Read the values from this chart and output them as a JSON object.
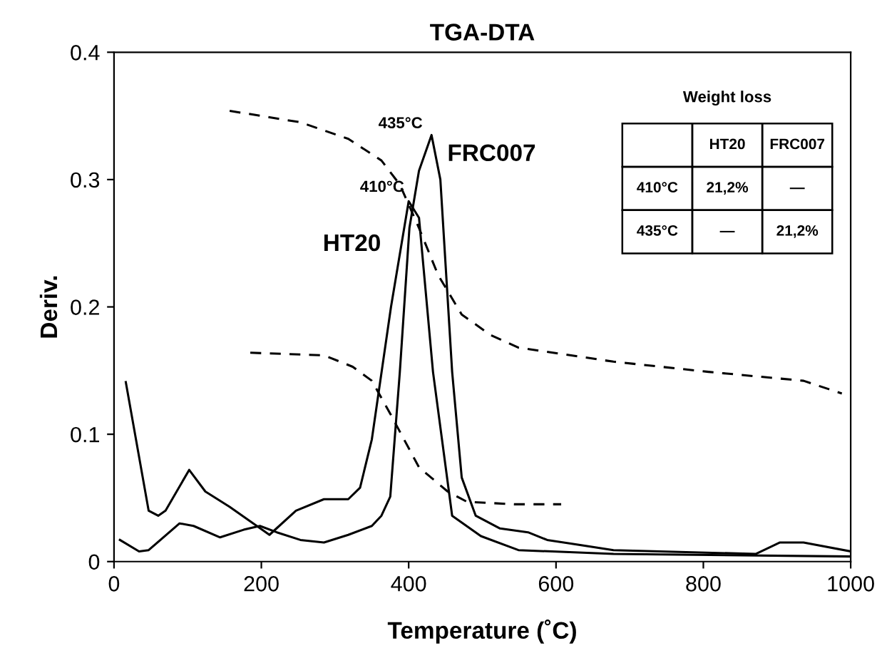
{
  "chart_data": {
    "type": "line",
    "title": "TGA-DTA",
    "xlabel": "Temperature (˚C)",
    "ylabel": "Deriv.",
    "xlim": [
      0,
      1000
    ],
    "ylim": [
      0,
      0.4
    ],
    "xticks": [
      0,
      200,
      400,
      600,
      800,
      1000
    ],
    "yticks": [
      0,
      0.1,
      0.2,
      0.3,
      0.4
    ],
    "grid": false,
    "legend": false,
    "marker": "none",
    "series": [
      {
        "name": "HT20",
        "color": "#000000",
        "line_style": "solid",
        "x": [
          16,
          47,
          60,
          70,
          102,
          124,
          157,
          189,
          211,
          247,
          285,
          318,
          334,
          350,
          376,
          400,
          414,
          433,
          459,
          498,
          549,
          678,
          1000
        ],
        "values": [
          0.141,
          0.04,
          0.036,
          0.04,
          0.072,
          0.055,
          0.043,
          0.03,
          0.021,
          0.04,
          0.049,
          0.049,
          0.058,
          0.096,
          0.2,
          0.283,
          0.27,
          0.149,
          0.036,
          0.02,
          0.009,
          0.006,
          0.004
        ]
      },
      {
        "name": "FRC007",
        "color": "#000000",
        "line_style": "solid",
        "x": [
          8,
          34,
          47,
          89,
          108,
          144,
          176,
          198,
          221,
          253,
          285,
          318,
          350,
          363,
          375,
          388,
          401,
          414,
          431,
          443,
          459,
          472,
          491,
          524,
          562,
          588,
          678,
          871,
          904,
          936,
          1000
        ],
        "values": [
          0.017,
          0.008,
          0.009,
          0.03,
          0.028,
          0.019,
          0.025,
          0.028,
          0.023,
          0.017,
          0.015,
          0.021,
          0.028,
          0.036,
          0.051,
          0.149,
          0.262,
          0.307,
          0.335,
          0.3,
          0.149,
          0.066,
          0.036,
          0.026,
          0.023,
          0.017,
          0.009,
          0.006,
          0.015,
          0.015,
          0.008
        ]
      },
      {
        "color": "#000000",
        "line_style": "dashed",
        "x": [
          157,
          253,
          318,
          363,
          388,
          414,
          440,
          472,
          511,
          549,
          678,
          807,
          936,
          988
        ],
        "values": [
          0.354,
          0.345,
          0.332,
          0.315,
          0.296,
          0.262,
          0.225,
          0.194,
          0.178,
          0.168,
          0.157,
          0.149,
          0.142,
          0.132
        ]
      },
      {
        "color": "#000000",
        "line_style": "dashed",
        "x": [
          185,
          285,
          324,
          350,
          376,
          414,
          453,
          479,
          543,
          607
        ],
        "values": [
          0.164,
          0.162,
          0.153,
          0.142,
          0.115,
          0.074,
          0.055,
          0.047,
          0.045,
          0.045
        ]
      }
    ],
    "annotations": [
      {
        "text": "410°C",
        "x": 410,
        "y": 0.28
      },
      {
        "text": "435°C",
        "x": 435,
        "y": 0.33
      },
      "Weight loss",
      "HT20",
      "FRC007",
      "410°C",
      "21,2%",
      "—",
      "435°C",
      "—",
      "21,2%"
    ]
  }
}
